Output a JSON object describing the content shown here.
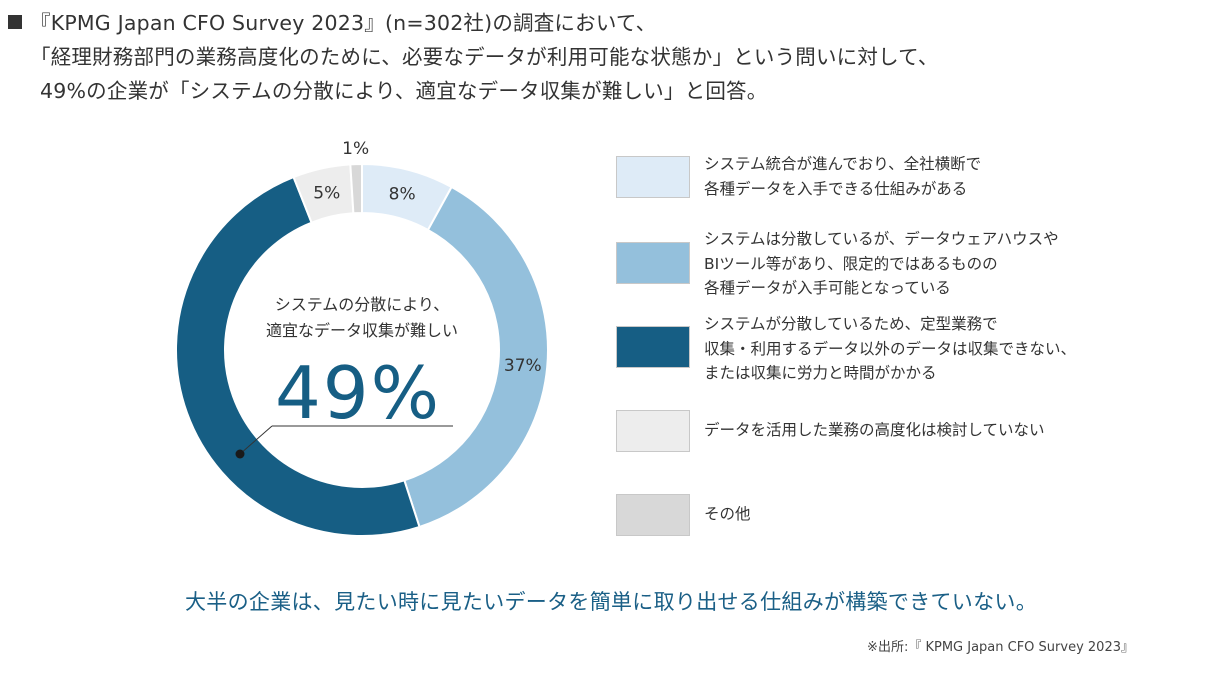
{
  "header": {
    "line1": "『KPMG Japan CFO Survey 2023』(n=302社)の調査において、",
    "line2": "「経理財務部門の業務高度化のために、必要なデータが利用可能な状態か」という問いに対して、",
    "line3": "49%の企業が「システムの分散により、適宜なデータ収集が難しい」と回答。"
  },
  "chart_data": {
    "type": "pie",
    "variant": "donut",
    "title": "",
    "center_text": [
      "システムの分散により、",
      "適宜なデータ収集が難しい"
    ],
    "center_value": "49%",
    "legend_position": "right",
    "slices": [
      {
        "label": "システム統合が進んでおり、全社横断で\n各種データを入手できる仕組みがある",
        "value": 8,
        "value_label": "8%",
        "color": "#deebf7"
      },
      {
        "label": "システムは分散しているが、データウェアハウスや\nBIツール等があり、限定的ではあるものの\n各種データが入手可能となっている",
        "value": 37,
        "value_label": "37%",
        "color": "#94c0dc"
      },
      {
        "label": "システムが分散しているため、定型業務で\n収集・利用するデータ以外のデータは収集できない、\nまたは収集に労力と時間がかかる",
        "value": 49,
        "value_label": "",
        "color": "#165e84"
      },
      {
        "label": "データを活用した業務の高度化は検討していない",
        "value": 5,
        "value_label": "5%",
        "color": "#ededed"
      },
      {
        "label": "その他",
        "value": 1,
        "value_label": "1%",
        "color": "#d8d8d8"
      }
    ]
  },
  "conclusion": "大半の企業は、見たい時に見たいデータを簡単に取り出せる仕組みが構築できていない。",
  "source": "※出所:『 KPMG Japan CFO Survey 2023』"
}
